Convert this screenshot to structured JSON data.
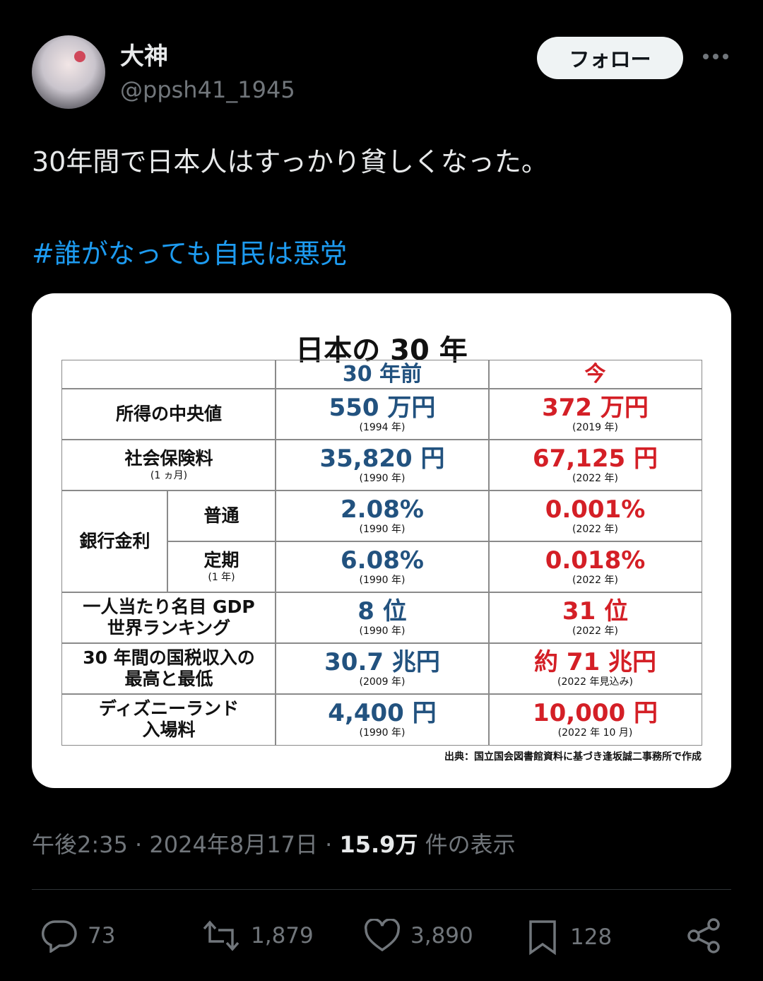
{
  "user": {
    "name": "大神",
    "handle": "@ppsh41_1945"
  },
  "follow_button": "フォロー",
  "tweet": {
    "text": "30年間で日本人はすっかり貧しくなった。",
    "hashtag": "#誰がなっても自民は悪党"
  },
  "image": {
    "title": "日本の 30 年",
    "columns": [
      "30 年前",
      "今"
    ],
    "rows": [
      {
        "label": [
          "所得の中央値"
        ],
        "past": {
          "value": "550 万円",
          "note": "(1994 年)"
        },
        "now": {
          "value": "372 万円",
          "note": "(2019 年)"
        }
      },
      {
        "label": [
          "社会保険料"
        ],
        "sublabel": "(1 ヵ月)",
        "past": {
          "value": "35,820 円",
          "note": "(1990 年)"
        },
        "now": {
          "value": "67,125 円",
          "note": "(2022 年)"
        }
      },
      {
        "group": "銀行金利",
        "subrows": [
          {
            "label": [
              "普通"
            ],
            "past": {
              "value": "2.08%",
              "note": "(1990 年)"
            },
            "now": {
              "value": "0.001%",
              "note": "(2022 年)"
            }
          },
          {
            "label": [
              "定期"
            ],
            "sublabel": "(1 年)",
            "past": {
              "value": "6.08%",
              "note": "(1990 年)"
            },
            "now": {
              "value": "0.018%",
              "note": "(2022 年)"
            }
          }
        ]
      },
      {
        "label": [
          "一人当たり名目 GDP",
          "世界ランキング"
        ],
        "past": {
          "value": "8 位",
          "note": "(1990 年)"
        },
        "now": {
          "value": "31 位",
          "note": "(2022 年)"
        }
      },
      {
        "label": [
          "30 年間の国税収入の",
          "最高と最低"
        ],
        "past": {
          "value": "30.7 兆円",
          "note": "(2009 年)"
        },
        "now": {
          "value": "約 71 兆円",
          "note": "(2022 年見込み)"
        }
      },
      {
        "label": [
          "ディズニーランド",
          "入場料"
        ],
        "past": {
          "value": "4,400 円",
          "note": "(1990 年)"
        },
        "now": {
          "value": "10,000 円",
          "note": "(2022 年 10 月)"
        }
      }
    ],
    "source": "出典：国立国会図書館資料に基づき逢坂誠二事務所で作成"
  },
  "meta": {
    "time": "午後2:35",
    "separator": "·",
    "date": "2024年8月17日",
    "views": "15.9万",
    "views_label": "件の表示"
  },
  "actions": {
    "replies": 73,
    "retweets": "1,879",
    "likes": "3,890",
    "bookmarks": 128
  }
}
